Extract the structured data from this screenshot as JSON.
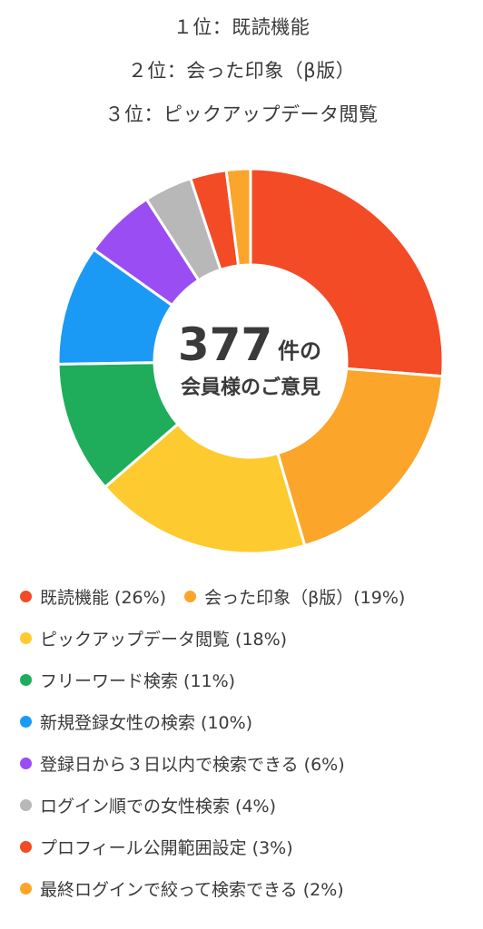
{
  "ranking": [
    "１位：既読機能",
    "２位：会った印象（β版）",
    "３位：ピックアップデータ閲覧"
  ],
  "center": {
    "number": "377",
    "suffix": "件の",
    "caption": "会員様のご意見"
  },
  "chart_data": {
    "type": "pie",
    "style": "donut",
    "legend_position": "bottom",
    "categories": [
      "既読機能",
      "会った印象（β版）",
      "ピックアップデータ閲覧",
      "フリーワード検索",
      "新規登録女性の検索",
      "登録日から３日以内で検索できる",
      "ログイン順での女性検索",
      "プロフィール公開範囲設定",
      "最終ログインで絞って検索できる"
    ],
    "values": [
      26,
      19,
      18,
      11,
      10,
      6,
      4,
      3,
      2
    ],
    "colors": [
      "#F24B26",
      "#FBA52B",
      "#FDCB2F",
      "#1FAD5B",
      "#1A9AF5",
      "#9A4DF2",
      "#B8B8B8",
      "#F24B26",
      "#FBA52B"
    ]
  },
  "legend": [
    {
      "label": "既読機能 (26%)",
      "color": "#F24B26"
    },
    {
      "label": "会った印象（β版）(19%)",
      "color": "#FBA52B"
    },
    {
      "label": "ピックアップデータ閲覧 (18%)",
      "color": "#FDCB2F"
    },
    {
      "label": "フリーワード検索 (11%)",
      "color": "#1FAD5B"
    },
    {
      "label": "新規登録女性の検索 (10%)",
      "color": "#1A9AF5"
    },
    {
      "label": "登録日から３日以内で検索できる (6%)",
      "color": "#9A4DF2"
    },
    {
      "label": "ログイン順での女性検索 (4%)",
      "color": "#B8B8B8"
    },
    {
      "label": "プロフィール公開範囲設定 (3%)",
      "color": "#F24B26"
    },
    {
      "label": "最終ログインで絞って検索できる (2%)",
      "color": "#FBA52B"
    }
  ]
}
